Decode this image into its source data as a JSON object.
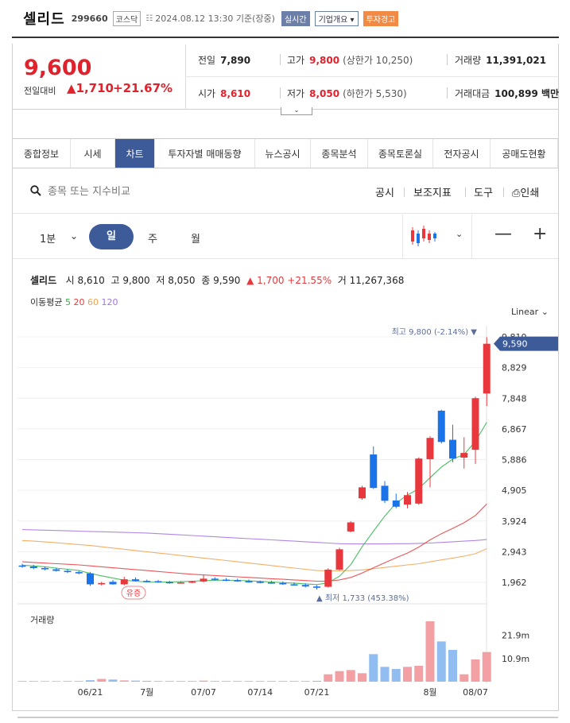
{
  "header": {
    "stock_name": "셀리드",
    "stock_code": "299660",
    "market": "코스닥",
    "as_of": "2024.08.12 13:30 기준(장중)",
    "realtime_badge": "실시간",
    "company_badge": "기업개요 ▾",
    "warning_badge": "투자경고"
  },
  "price": {
    "current": "9,600",
    "change_label": "전일대비",
    "change_amount": "▲1,710",
    "change_pct": "+21.67%",
    "prev_close_label": "전일",
    "prev_close": "7,890",
    "high_label": "고가",
    "high": "9,800",
    "upper_limit": "(상한가 10,250)",
    "volume_label": "거래량",
    "volume": "11,391,021",
    "open_label": "시가",
    "open": "8,610",
    "low_label": "저가",
    "low": "8,050",
    "lower_limit": "(하한가 5,530)",
    "amount_label": "거래대금",
    "amount": "100,899 백만"
  },
  "tabs": [
    "종합정보",
    "시세",
    "차트",
    "투자자별 매매동향",
    "뉴스공시",
    "종목분석",
    "종목토론실",
    "전자공시",
    "공매도현황"
  ],
  "active_tab": "차트",
  "toolbar": {
    "search_placeholder": "종목 또는 지수비교",
    "disclosure": "공시",
    "indicators": "보조지표",
    "tools": "도구",
    "print": "인쇄"
  },
  "period": {
    "minute": "1분",
    "day": "일",
    "week": "주",
    "month": "월",
    "zoom_out": "—",
    "zoom_in": "+"
  },
  "chart_info": {
    "name": "셀리드",
    "open_label": "시",
    "open": "8,610",
    "high_label": "고",
    "high": "9,800",
    "low_label": "저",
    "low": "8,050",
    "close_label": "종",
    "close": "9,590",
    "change": "▲ 1,700 +21.55%",
    "volume_label": "거",
    "volume": "11,267,368",
    "ma_label": "이동평균",
    "ma5": "5",
    "ma20": "20",
    "ma60": "60",
    "ma120": "120",
    "scale": "Linear"
  },
  "colors": {
    "up": "#e8383d",
    "down": "#1a73e8",
    "ma5": "#2fb34a",
    "ma20": "#e8383d",
    "ma60": "#f0a24d",
    "ma120": "#a272e0",
    "accent": "#3d5a99"
  },
  "chart_data": {
    "type": "candlestick",
    "y_ticks": [
      "9,810",
      "8,829",
      "7,848",
      "6,867",
      "5,886",
      "4,905",
      "3,924",
      "2,943",
      "1,962"
    ],
    "y_ticks_values": [
      9810,
      8829,
      7848,
      6867,
      5886,
      4905,
      3924,
      2943,
      1962
    ],
    "ylim": [
      1500,
      10100
    ],
    "x_ticks": [
      "06/21",
      "7월",
      "07/07",
      "07/14",
      "07/21",
      "8월",
      "08/07"
    ],
    "x_tick_index": [
      6,
      11,
      16,
      21,
      26,
      36,
      40
    ],
    "high_annotation": "최고 9,800 (-2.14%)",
    "low_annotation": "최저 1,733 (453.38%)",
    "last_price_label": "9,590",
    "event_label": "유증",
    "volume_title": "거래량",
    "volume_ticks": [
      "21.9m",
      "10.9m"
    ],
    "volume_ticks_values": [
      21.9,
      10.9
    ],
    "candles": [
      {
        "o": 2500,
        "h": 2560,
        "l": 2430,
        "c": 2470
      },
      {
        "o": 2470,
        "h": 2520,
        "l": 2380,
        "c": 2420
      },
      {
        "o": 2420,
        "h": 2470,
        "l": 2350,
        "c": 2380
      },
      {
        "o": 2380,
        "h": 2430,
        "l": 2310,
        "c": 2330
      },
      {
        "o": 2330,
        "h": 2380,
        "l": 2260,
        "c": 2290
      },
      {
        "o": 2290,
        "h": 2330,
        "l": 2220,
        "c": 2250
      },
      {
        "o": 2250,
        "h": 2300,
        "l": 1850,
        "c": 1900
      },
      {
        "o": 1900,
        "h": 1980,
        "l": 1860,
        "c": 1940
      },
      {
        "o": 1980,
        "h": 2040,
        "l": 1880,
        "c": 1900
      },
      {
        "o": 1900,
        "h": 2140,
        "l": 1870,
        "c": 2060
      },
      {
        "o": 2060,
        "h": 2120,
        "l": 1990,
        "c": 2010
      },
      {
        "o": 2010,
        "h": 2050,
        "l": 1960,
        "c": 2000
      },
      {
        "o": 2000,
        "h": 2040,
        "l": 1950,
        "c": 1970
      },
      {
        "o": 1970,
        "h": 2010,
        "l": 1920,
        "c": 1950
      },
      {
        "o": 1950,
        "h": 2000,
        "l": 1920,
        "c": 1960
      },
      {
        "o": 1960,
        "h": 2010,
        "l": 1930,
        "c": 1990
      },
      {
        "o": 1990,
        "h": 2200,
        "l": 1960,
        "c": 2080
      },
      {
        "o": 2080,
        "h": 2130,
        "l": 2020,
        "c": 2050
      },
      {
        "o": 2050,
        "h": 2100,
        "l": 2000,
        "c": 2030
      },
      {
        "o": 2030,
        "h": 2080,
        "l": 1980,
        "c": 2000
      },
      {
        "o": 2000,
        "h": 2050,
        "l": 1950,
        "c": 1980
      },
      {
        "o": 1980,
        "h": 2020,
        "l": 1930,
        "c": 1960
      },
      {
        "o": 1960,
        "h": 2010,
        "l": 1920,
        "c": 1940
      },
      {
        "o": 1940,
        "h": 1990,
        "l": 1880,
        "c": 1900
      },
      {
        "o": 1900,
        "h": 1960,
        "l": 1860,
        "c": 1880
      },
      {
        "o": 1880,
        "h": 1930,
        "l": 1800,
        "c": 1830
      },
      {
        "o": 1830,
        "h": 1870,
        "l": 1733,
        "c": 1790
      },
      {
        "o": 1820,
        "h": 2410,
        "l": 1800,
        "c": 2370
      },
      {
        "o": 2370,
        "h": 3070,
        "l": 2350,
        "c": 3020
      },
      {
        "o": 3590,
        "h": 3920,
        "l": 3560,
        "c": 3880
      },
      {
        "o": 4650,
        "h": 5050,
        "l": 4600,
        "c": 5000
      },
      {
        "o": 6050,
        "h": 6310,
        "l": 4950,
        "c": 4980
      },
      {
        "o": 5050,
        "h": 5200,
        "l": 4500,
        "c": 4570
      },
      {
        "o": 4580,
        "h": 4800,
        "l": 4330,
        "c": 4380
      },
      {
        "o": 4450,
        "h": 4850,
        "l": 4330,
        "c": 4750
      },
      {
        "o": 4480,
        "h": 5960,
        "l": 4450,
        "c": 5920
      },
      {
        "o": 5900,
        "h": 6640,
        "l": 5000,
        "c": 6580
      },
      {
        "o": 7450,
        "h": 7480,
        "l": 6400,
        "c": 6450
      },
      {
        "o": 6520,
        "h": 7000,
        "l": 5800,
        "c": 5920
      },
      {
        "o": 5950,
        "h": 6600,
        "l": 5600,
        "c": 6100
      },
      {
        "o": 6200,
        "h": 7900,
        "l": 5750,
        "c": 7850
      },
      {
        "o": 8000,
        "h": 9800,
        "l": 7600,
        "c": 9590
      }
    ],
    "volume": [
      0.3,
      0.3,
      0.25,
      0.25,
      0.3,
      0.3,
      0.7,
      1.3,
      1.0,
      0.6,
      0.5,
      0.4,
      0.3,
      0.3,
      0.3,
      0.3,
      0.5,
      0.3,
      0.3,
      0.3,
      0.3,
      0.3,
      0.3,
      0.3,
      0.3,
      0.3,
      0.4,
      3.5,
      5.0,
      5.5,
      4.0,
      13.0,
      7.0,
      6.0,
      7.0,
      7.5,
      28.5,
      19.0,
      15.0,
      3.5,
      10.5,
      14.0
    ],
    "ma5": [
      2510,
      2490,
      2460,
      2420,
      2380,
      2340,
      2250,
      2170,
      2100,
      2030,
      2000,
      1975,
      1970,
      1975,
      1985,
      2000,
      2015,
      2030,
      2030,
      2025,
      2010,
      1995,
      1975,
      1955,
      1935,
      1915,
      1890,
      1950,
      2160,
      2530,
      3100,
      3600,
      4080,
      4500,
      4750,
      4960,
      5310,
      5650,
      5900,
      6050,
      6470,
      7080
    ],
    "ma20": [
      2620,
      2600,
      2580,
      2560,
      2540,
      2520,
      2490,
      2460,
      2430,
      2400,
      2370,
      2340,
      2310,
      2280,
      2250,
      2220,
      2200,
      2180,
      2160,
      2140,
      2120,
      2100,
      2080,
      2060,
      2040,
      2020,
      2000,
      2000,
      2040,
      2120,
      2260,
      2430,
      2590,
      2750,
      2900,
      3090,
      3320,
      3520,
      3690,
      3870,
      4100,
      4470
    ],
    "ma60": [
      3300,
      3280,
      3255,
      3230,
      3200,
      3170,
      3140,
      3100,
      3060,
      3020,
      2980,
      2940,
      2900,
      2860,
      2820,
      2780,
      2740,
      2700,
      2660,
      2620,
      2580,
      2540,
      2500,
      2460,
      2420,
      2380,
      2340,
      2330,
      2330,
      2340,
      2360,
      2400,
      2440,
      2480,
      2520,
      2560,
      2620,
      2680,
      2740,
      2800,
      2880,
      3040
    ],
    "ma120": [
      3650,
      3640,
      3630,
      3620,
      3610,
      3600,
      3590,
      3580,
      3570,
      3560,
      3550,
      3540,
      3520,
      3500,
      3480,
      3460,
      3440,
      3420,
      3400,
      3380,
      3360,
      3340,
      3320,
      3300,
      3280,
      3260,
      3240,
      3220,
      3200,
      3190,
      3190,
      3190,
      3190,
      3200,
      3200,
      3210,
      3220,
      3240,
      3260,
      3280,
      3300,
      3330
    ]
  }
}
